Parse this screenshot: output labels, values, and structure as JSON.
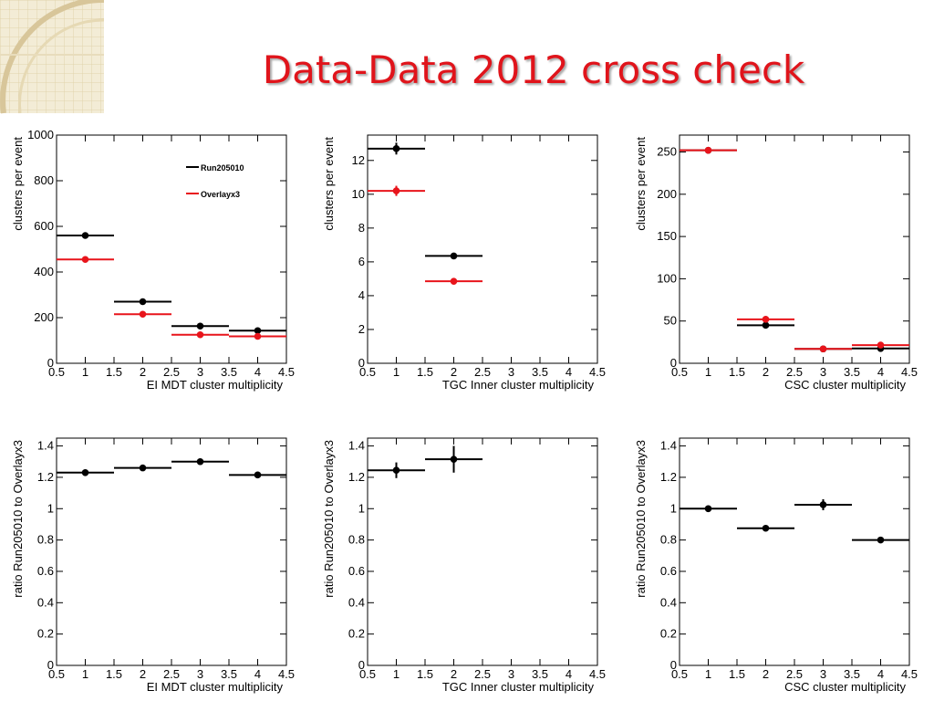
{
  "slide": {
    "title": "Data-Data 2012 cross check",
    "title_color": "#e0141b",
    "series_colors": {
      "Run205010": "#000000",
      "Overlayx3": "#e8141b"
    }
  },
  "chart_data": [
    {
      "type": "scatter",
      "xlabel": "EI MDT cluster multiplicity",
      "ylabel": "clusters per event",
      "xlim": [
        0.5,
        4.5
      ],
      "ylim": [
        0,
        1000
      ],
      "xticks": [
        "0.5",
        "1",
        "1.5",
        "2",
        "2.5",
        "3",
        "3.5",
        "4",
        "4.5"
      ],
      "yticks": [
        "0",
        "200",
        "400",
        "600",
        "800",
        "1000"
      ],
      "legend": {
        "placement": "top-right",
        "entries": [
          "Run205010",
          "Overlayx3"
        ]
      },
      "series": [
        {
          "name": "Run205010",
          "color": "#000000",
          "points": [
            {
              "x": 1,
              "y": 560,
              "xerr": 0.5,
              "yerr": 0
            },
            {
              "x": 2,
              "y": 270,
              "xerr": 0.5,
              "yerr": 0
            },
            {
              "x": 3,
              "y": 163,
              "xerr": 0.5,
              "yerr": 0
            },
            {
              "x": 4,
              "y": 143,
              "xerr": 0.5,
              "yerr": 0
            }
          ]
        },
        {
          "name": "Overlayx3",
          "color": "#e8141b",
          "points": [
            {
              "x": 1,
              "y": 455,
              "xerr": 0.5,
              "yerr": 0
            },
            {
              "x": 2,
              "y": 215,
              "xerr": 0.5,
              "yerr": 0
            },
            {
              "x": 3,
              "y": 125,
              "xerr": 0.5,
              "yerr": 0
            },
            {
              "x": 4,
              "y": 118,
              "xerr": 0.5,
              "yerr": 0
            }
          ]
        }
      ]
    },
    {
      "type": "scatter",
      "xlabel": "TGC Inner cluster multiplicity",
      "ylabel": "clusters per event",
      "xlim": [
        0.5,
        4.5
      ],
      "ylim": [
        0,
        13.5
      ],
      "xticks": [
        "0.5",
        "1",
        "1.5",
        "2",
        "2.5",
        "3",
        "3.5",
        "4",
        "4.5"
      ],
      "yticks": [
        "0",
        "2",
        "4",
        "6",
        "8",
        "10",
        "12"
      ],
      "series": [
        {
          "name": "Run205010",
          "color": "#000000",
          "points": [
            {
              "x": 1,
              "y": 12.7,
              "xerr": 0.5,
              "yerr": 0.35
            },
            {
              "x": 2,
              "y": 6.35,
              "xerr": 0.5,
              "yerr": 0.15
            }
          ]
        },
        {
          "name": "Overlayx3",
          "color": "#e8141b",
          "points": [
            {
              "x": 1,
              "y": 10.2,
              "xerr": 0.5,
              "yerr": 0.3
            },
            {
              "x": 2,
              "y": 4.85,
              "xerr": 0.5,
              "yerr": 0.12
            }
          ]
        }
      ]
    },
    {
      "type": "scatter",
      "xlabel": "CSC cluster multiplicity",
      "ylabel": "clusters per event",
      "xlim": [
        0.5,
        4.5
      ],
      "ylim": [
        0,
        270
      ],
      "xticks": [
        "0.5",
        "1",
        "1.5",
        "2",
        "2.5",
        "3",
        "3.5",
        "4",
        "4.5"
      ],
      "yticks": [
        "0",
        "50",
        "100",
        "150",
        "200",
        "250"
      ],
      "series": [
        {
          "name": "Run205010",
          "color": "#000000",
          "points": [
            {
              "x": 1,
              "y": 252,
              "xerr": 0.5,
              "yerr": 0
            },
            {
              "x": 2,
              "y": 45,
              "xerr": 0.5,
              "yerr": 0
            },
            {
              "x": 3,
              "y": 17,
              "xerr": 0.5,
              "yerr": 0
            },
            {
              "x": 4,
              "y": 17.5,
              "xerr": 0.5,
              "yerr": 0
            }
          ]
        },
        {
          "name": "Overlayx3",
          "color": "#e8141b",
          "points": [
            {
              "x": 1,
              "y": 252,
              "xerr": 0.5,
              "yerr": 0
            },
            {
              "x": 2,
              "y": 52,
              "xerr": 0.5,
              "yerr": 0
            },
            {
              "x": 3,
              "y": 17,
              "xerr": 0.5,
              "yerr": 0
            },
            {
              "x": 4,
              "y": 21.5,
              "xerr": 0.5,
              "yerr": 0
            }
          ]
        }
      ]
    },
    {
      "type": "scatter",
      "xlabel": "EI MDT cluster multiplicity",
      "ylabel": "ratio Run205010 to Overlayx3",
      "xlim": [
        0.5,
        4.5
      ],
      "ylim": [
        0,
        1.45
      ],
      "xticks": [
        "0.5",
        "1",
        "1.5",
        "2",
        "2.5",
        "3",
        "3.5",
        "4",
        "4.5"
      ],
      "yticks": [
        "0",
        "0.2",
        "0.4",
        "0.6",
        "0.8",
        "1",
        "1.2",
        "1.4"
      ],
      "series": [
        {
          "color": "#000000",
          "points": [
            {
              "x": 1,
              "y": 1.23,
              "xerr": 0.5,
              "yerr": 0.01
            },
            {
              "x": 2,
              "y": 1.26,
              "xerr": 0.5,
              "yerr": 0.01
            },
            {
              "x": 3,
              "y": 1.3,
              "xerr": 0.5,
              "yerr": 0.01
            },
            {
              "x": 4,
              "y": 1.215,
              "xerr": 0.5,
              "yerr": 0.01
            }
          ]
        }
      ]
    },
    {
      "type": "scatter",
      "xlabel": "TGC Inner cluster multiplicity",
      "ylabel": "ratio Run205010 to Overlayx3",
      "xlim": [
        0.5,
        4.5
      ],
      "ylim": [
        0,
        1.45
      ],
      "xticks": [
        "0.5",
        "1",
        "1.5",
        "2",
        "2.5",
        "3",
        "3.5",
        "4",
        "4.5"
      ],
      "yticks": [
        "0",
        "0.2",
        "0.4",
        "0.6",
        "0.8",
        "1",
        "1.2",
        "1.4"
      ],
      "series": [
        {
          "color": "#000000",
          "points": [
            {
              "x": 1,
              "y": 1.245,
              "xerr": 0.5,
              "yerr": 0.05
            },
            {
              "x": 2,
              "y": 1.315,
              "xerr": 0.5,
              "yerr": 0.085
            }
          ]
        }
      ]
    },
    {
      "type": "scatter",
      "xlabel": "CSC cluster multiplicity",
      "ylabel": "ratio Run205010 to Overlayx3",
      "xlim": [
        0.5,
        4.5
      ],
      "ylim": [
        0,
        1.45
      ],
      "xticks": [
        "0.5",
        "1",
        "1.5",
        "2",
        "2.5",
        "3",
        "3.5",
        "4",
        "4.5"
      ],
      "yticks": [
        "0",
        "0.2",
        "0.4",
        "0.6",
        "0.8",
        "1",
        "1.2",
        "1.4"
      ],
      "series": [
        {
          "color": "#000000",
          "points": [
            {
              "x": 1,
              "y": 1.0,
              "xerr": 0.5,
              "yerr": 0.01
            },
            {
              "x": 2,
              "y": 0.875,
              "xerr": 0.5,
              "yerr": 0.01
            },
            {
              "x": 3,
              "y": 1.025,
              "xerr": 0.5,
              "yerr": 0.035
            },
            {
              "x": 4,
              "y": 0.8,
              "xerr": 0.5,
              "yerr": 0.02
            }
          ]
        }
      ]
    }
  ]
}
